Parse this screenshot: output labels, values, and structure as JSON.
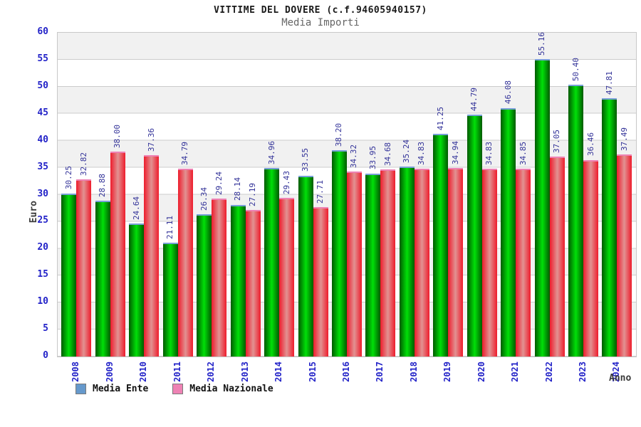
{
  "header": {
    "title": "VITTIME DEL DOVERE (c.f.94605940157)",
    "subtitle": "Media Importi"
  },
  "chart_data": {
    "type": "bar",
    "title": "VITTIME DEL DOVERE (c.f.94605940157)",
    "subtitle": "Media Importi",
    "xlabel": "Anno",
    "ylabel": "Euro",
    "ylim": [
      0,
      60
    ],
    "ytick_step": 5,
    "grid": true,
    "legend_position": "bottom-left",
    "value_label_format": "two-decimals",
    "categories": [
      "2008",
      "2009",
      "2010",
      "2011",
      "2012",
      "2013",
      "2014",
      "2015",
      "2016",
      "2017",
      "2018",
      "2019",
      "2020",
      "2021",
      "2022",
      "2023",
      "2024"
    ],
    "series": [
      {
        "name": "Media Ente",
        "values": [
          30.25,
          28.88,
          24.64,
          21.11,
          26.34,
          28.14,
          34.96,
          33.55,
          38.2,
          33.95,
          35.24,
          41.25,
          44.79,
          46.08,
          55.16,
          50.4,
          47.81
        ],
        "bar_edge_color": "#005a00",
        "bar_center_color": "#00e008",
        "bar_cap_color": "#79a0d8",
        "legend_color": "#6699cc"
      },
      {
        "name": "Media Nazionale",
        "values": [
          32.82,
          38.0,
          37.36,
          34.79,
          29.24,
          27.19,
          29.43,
          27.71,
          34.32,
          34.68,
          34.83,
          34.94,
          34.83,
          34.85,
          37.05,
          36.46,
          37.49
        ],
        "bar_edge_color": "#ee1c2c",
        "bar_center_color": "#e29292",
        "bar_cap_color": "#ee82b4",
        "legend_color": "#ee82b4"
      }
    ]
  },
  "colors": {
    "axis_tick_label": "#2323c8",
    "value_label": "#333399",
    "band": "#f1f1f1",
    "gridline": "#cccccc",
    "axis_title": "#3a3a3a",
    "title": "#1a1a1a",
    "subtitle": "#666666"
  }
}
